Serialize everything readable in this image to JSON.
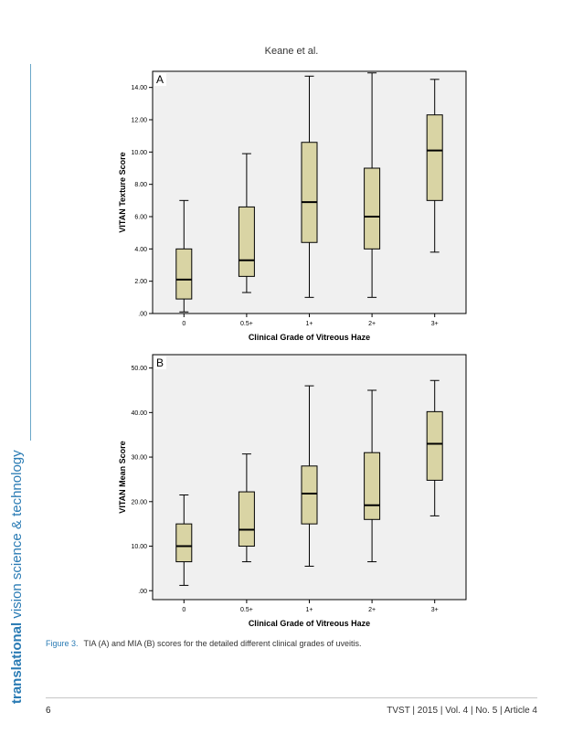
{
  "header": {
    "running_head": "Keane et al."
  },
  "side_banner": {
    "bold": "translational",
    "rest": " vision science & technology"
  },
  "chart_data": [
    {
      "type": "box",
      "panel_label": "A",
      "xlabel": "Clinical Grade of Vitreous Haze",
      "ylabel": "VITAN Texture Score",
      "categories": [
        "0",
        "0.5+",
        "1+",
        "2+",
        "3+"
      ],
      "ylim": [
        0,
        15
      ],
      "yticks": [
        0,
        2,
        4,
        6,
        8,
        10,
        12,
        14
      ],
      "ytick_labels": [
        ".00",
        "2.00",
        "4.00",
        "6.00",
        "8.00",
        "10.00",
        "12.00",
        "14.00"
      ],
      "boxes": [
        {
          "min": 0.1,
          "q1": 0.9,
          "median": 2.1,
          "q3": 4.0,
          "max": 7.0
        },
        {
          "min": 1.3,
          "q1": 2.3,
          "median": 3.3,
          "q3": 6.6,
          "max": 9.9
        },
        {
          "min": 1.0,
          "q1": 4.4,
          "median": 6.9,
          "q3": 10.6,
          "max": 14.7
        },
        {
          "min": 1.0,
          "q1": 4.0,
          "median": 6.0,
          "q3": 9.0,
          "max": 14.9
        },
        {
          "min": 3.8,
          "q1": 7.0,
          "median": 10.1,
          "q3": 12.3,
          "max": 14.5
        }
      ]
    },
    {
      "type": "box",
      "panel_label": "B",
      "xlabel": "Clinical Grade of Vitreous Haze",
      "ylabel": "VITAN Mean Score",
      "categories": [
        "0",
        "0.5+",
        "1+",
        "2+",
        "3+"
      ],
      "ylim": [
        -2,
        53
      ],
      "yticks": [
        0,
        10,
        20,
        30,
        40,
        50
      ],
      "ytick_labels": [
        ".00",
        "10.00",
        "20.00",
        "30.00",
        "40.00",
        "50.00"
      ],
      "boxes": [
        {
          "min": 1.2,
          "q1": 6.5,
          "median": 10.0,
          "q3": 15.0,
          "max": 21.5
        },
        {
          "min": 6.5,
          "q1": 10.0,
          "median": 13.7,
          "q3": 22.2,
          "max": 30.7
        },
        {
          "min": 5.5,
          "q1": 15.0,
          "median": 21.8,
          "q3": 28.0,
          "max": 46.0
        },
        {
          "min": 6.5,
          "q1": 16.0,
          "median": 19.2,
          "q3": 31.0,
          "max": 45.0
        },
        {
          "min": 16.8,
          "q1": 24.8,
          "median": 33.0,
          "q3": 40.2,
          "max": 47.2
        }
      ]
    }
  ],
  "caption": {
    "label": "Figure 3.",
    "text": "TIA (A) and MIA (B) scores for the detailed different clinical grades of uveitis."
  },
  "footer": {
    "page_number": "6",
    "right": "TVST | 2015 | Vol. 4 | No. 5 | Article 4"
  }
}
